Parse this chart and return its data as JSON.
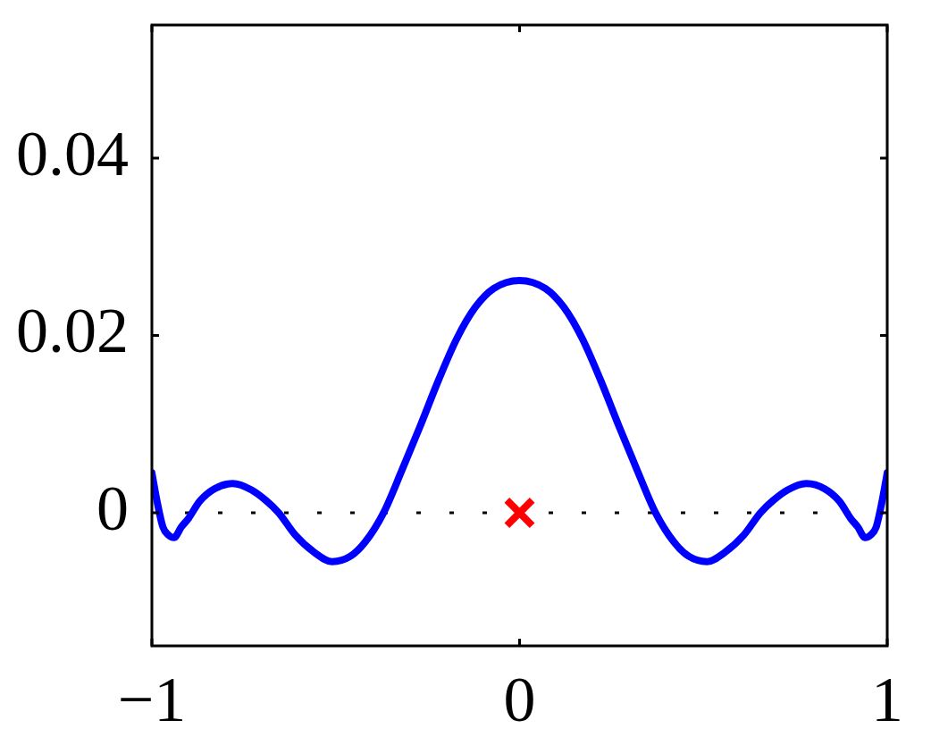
{
  "chart_data": {
    "type": "line",
    "xlim": [
      -1,
      1
    ],
    "ylim": [
      -0.015,
      0.055
    ],
    "xticks": [
      {
        "value": -1,
        "label": "−1"
      },
      0,
      1
    ],
    "yticks": [
      0,
      0.02,
      0.04
    ],
    "series": [
      {
        "color": "#0000ff",
        "x": [
          -1,
          -0.985,
          -0.97,
          -0.955,
          -0.94,
          -0.92,
          -0.9,
          -0.87,
          -0.83,
          -0.78,
          -0.73,
          -0.69,
          -0.655,
          -0.61,
          -0.56,
          -0.51,
          -0.46,
          -0.42,
          -0.37,
          -0.32,
          -0.27,
          -0.22,
          -0.17,
          -0.12,
          -0.07,
          0,
          0.07,
          0.12,
          0.17,
          0.22,
          0.27,
          0.32,
          0.37,
          0.42,
          0.46,
          0.51,
          0.56,
          0.61,
          0.655,
          0.69,
          0.73,
          0.78,
          0.83,
          0.87,
          0.9,
          0.92,
          0.94,
          0.955,
          0.97,
          0.985,
          1
        ],
        "values": [
          0.0045,
          0.0011,
          -0.0016,
          -0.0025,
          -0.0028,
          -0.0016,
          -0.0006,
          0.0013,
          0.0027,
          0.0033,
          0.0026,
          0.0014,
          0,
          -0.0025,
          -0.0044,
          -0.0055,
          -0.0049,
          -0.0033,
          0,
          0.0048,
          0.0098,
          0.015,
          0.0197,
          0.0232,
          0.0253,
          0.0262,
          0.0253,
          0.0232,
          0.0197,
          0.015,
          0.0098,
          0.0048,
          0,
          -0.0033,
          -0.0049,
          -0.0055,
          -0.0044,
          -0.0025,
          0,
          0.0014,
          0.0026,
          0.0033,
          0.0027,
          0.0013,
          -0.0006,
          -0.0016,
          -0.0028,
          -0.0025,
          -0.0016,
          0.0011,
          0.0045
        ]
      },
      {
        "type": "scatter",
        "color": "#ff0000",
        "marker": "cross",
        "x": [
          0
        ],
        "values": [
          0
        ]
      }
    ],
    "ref_lines": [
      {
        "axis": "y",
        "value": 0,
        "color": "#000000",
        "line_style": "dotted"
      }
    ]
  }
}
